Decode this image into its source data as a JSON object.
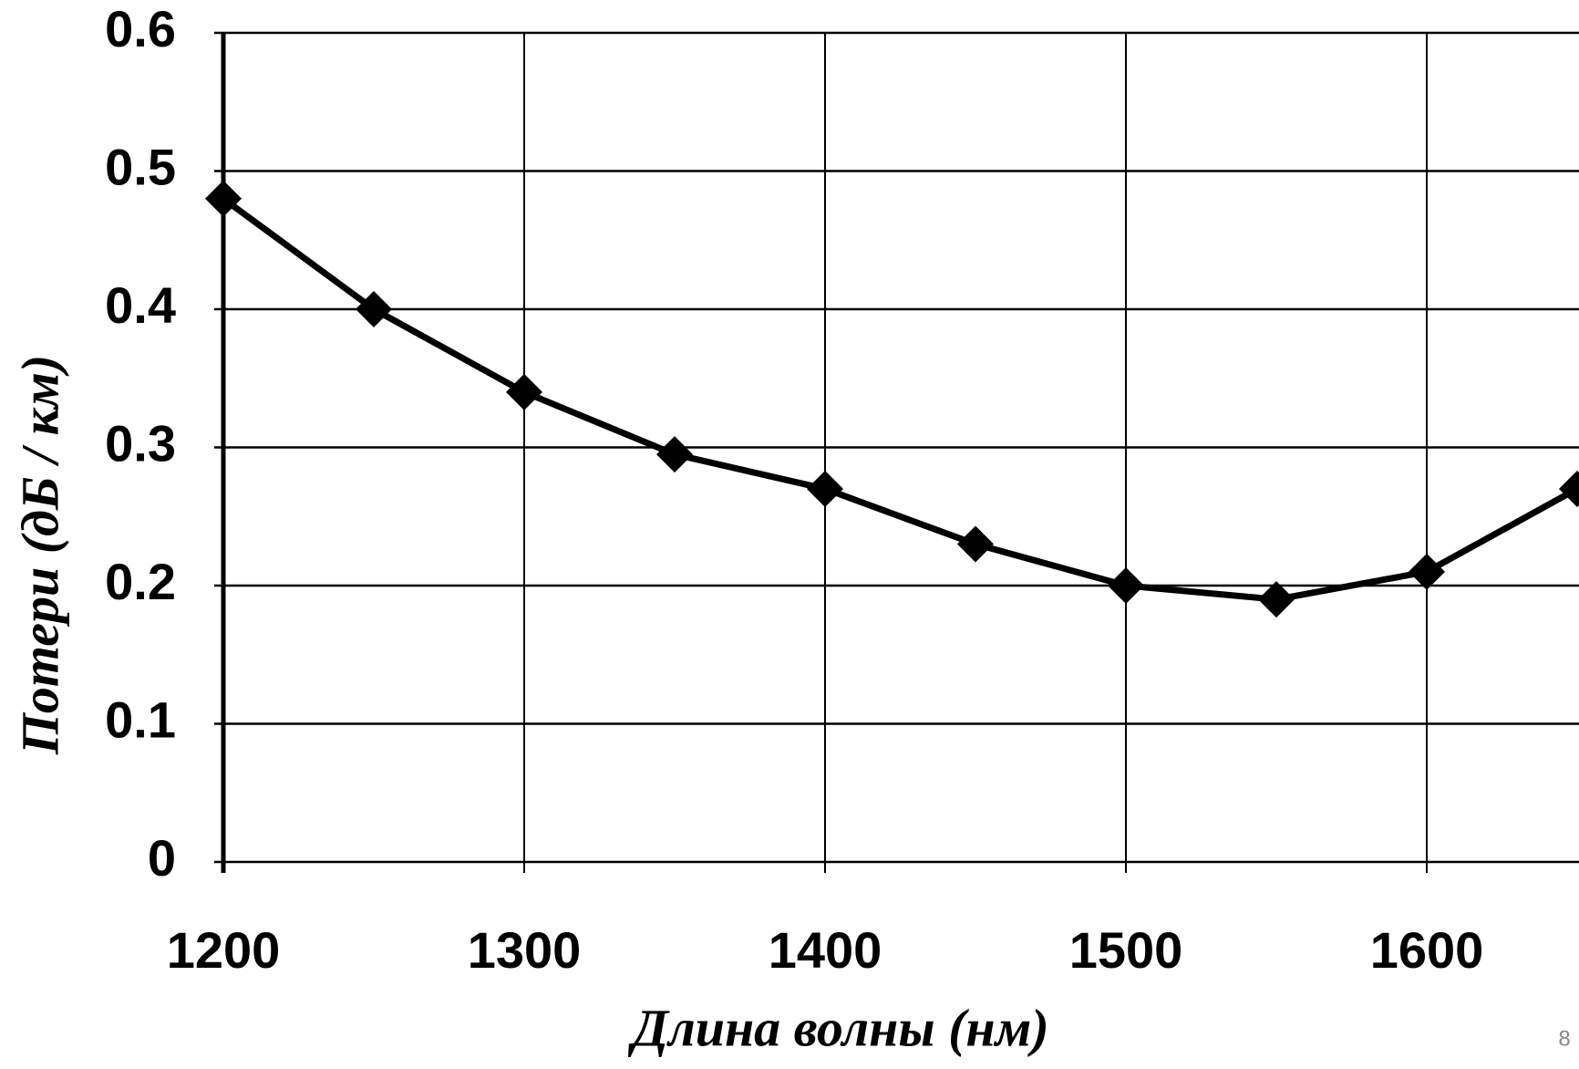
{
  "chart_data": {
    "type": "line",
    "x": [
      1200,
      1250,
      1300,
      1350,
      1400,
      1450,
      1500,
      1550,
      1600,
      1650
    ],
    "values": [
      0.48,
      0.4,
      0.34,
      0.295,
      0.27,
      0.23,
      0.2,
      0.19,
      0.21,
      0.27
    ],
    "color": "#000000",
    "xlabel": "Длина волны (нм)",
    "ylabel": "Потери (дБ / км)",
    "xlim": [
      1200,
      1650
    ],
    "xticks": [
      1200,
      1300,
      1400,
      1500,
      1600
    ],
    "ylim": [
      0,
      0.6
    ],
    "yticks": [
      0,
      0.1,
      0.2,
      0.3,
      0.4,
      0.5,
      0.6
    ],
    "grid": true
  },
  "page_number": "8"
}
